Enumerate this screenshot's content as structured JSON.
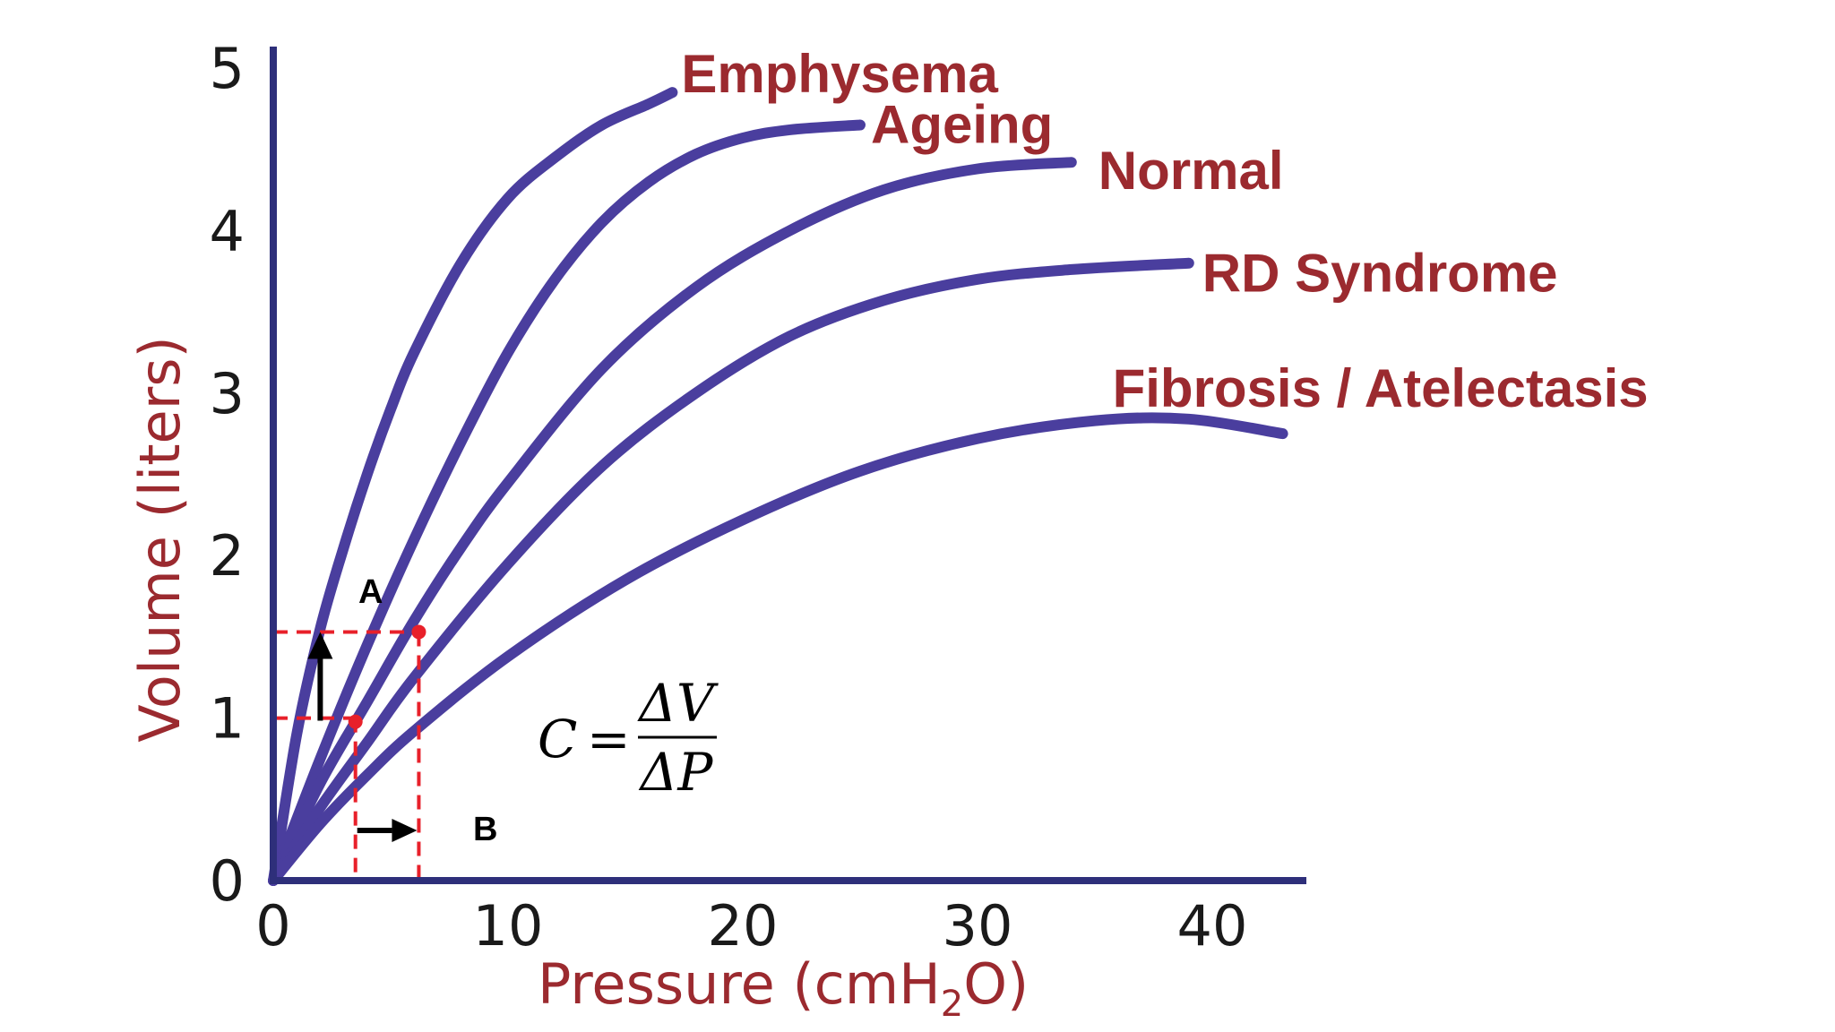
{
  "colors": {
    "curve": "#4a3e9e",
    "axis": "#2e2f7a",
    "label": "#9b2a2f",
    "guide": "#e8202a",
    "arrow": "#000000"
  },
  "chart_data": {
    "type": "line",
    "xlabel_main": "Pressure (cmH",
    "xlabel_sub": "2",
    "xlabel_end": "O)",
    "ylabel": "Volume (liters)",
    "xlim": [
      -1,
      45
    ],
    "ylim": [
      0,
      5
    ],
    "x_ticks": [
      0,
      10,
      20,
      30,
      40
    ],
    "y_ticks": [
      0,
      1,
      2,
      3,
      4,
      5
    ],
    "grid": false,
    "legend": "inline labels at curve ends",
    "series": [
      {
        "name": "Emphysema",
        "x": [
          0,
          1,
          2,
          3,
          4,
          5,
          6,
          8,
          10,
          12,
          14,
          16,
          17
        ],
        "y": [
          0,
          0.9,
          1.55,
          2.05,
          2.5,
          2.9,
          3.25,
          3.8,
          4.2,
          4.45,
          4.65,
          4.78,
          4.85
        ]
      },
      {
        "name": "Ageing",
        "x": [
          0,
          2,
          4,
          6,
          8,
          10,
          12,
          14,
          16,
          18,
          20,
          22,
          25
        ],
        "y": [
          0,
          0.75,
          1.45,
          2.1,
          2.7,
          3.25,
          3.7,
          4.05,
          4.3,
          4.47,
          4.57,
          4.62,
          4.65
        ]
      },
      {
        "name": "Normal",
        "x": [
          0,
          2,
          4,
          6,
          8,
          10,
          14,
          18,
          22,
          26,
          30,
          34
        ],
        "y": [
          0,
          0.6,
          1.1,
          1.6,
          2.05,
          2.45,
          3.15,
          3.65,
          4.0,
          4.25,
          4.38,
          4.42
        ]
      },
      {
        "name": "RD Syndrome",
        "x": [
          0,
          2,
          4,
          6,
          10,
          14,
          18,
          22,
          26,
          30,
          34,
          39
        ],
        "y": [
          0,
          0.45,
          0.85,
          1.25,
          1.95,
          2.55,
          3.0,
          3.35,
          3.57,
          3.7,
          3.76,
          3.8
        ]
      },
      {
        "name": "Fibrosis / Atelectasis",
        "x": [
          0,
          2,
          4,
          6,
          10,
          15,
          20,
          25,
          30,
          35,
          39,
          43
        ],
        "y": [
          0,
          0.35,
          0.65,
          0.92,
          1.38,
          1.85,
          2.22,
          2.52,
          2.72,
          2.83,
          2.84,
          2.75
        ]
      }
    ],
    "annotations": {
      "point_1": {
        "x": 3.5,
        "y": 1.0
      },
      "point_2": {
        "x": 6.2,
        "y": 1.53
      },
      "arrow_A": {
        "label": "A",
        "x": 2.0,
        "y_from": 1.05,
        "y_to": 1.53
      },
      "arrow_B": {
        "label": "B",
        "y": 0.3,
        "x_from": 3.5,
        "x_to": 6.2
      },
      "formula": {
        "lhs": "C",
        "numerator": "ΔV",
        "denominator": "ΔP"
      }
    }
  }
}
